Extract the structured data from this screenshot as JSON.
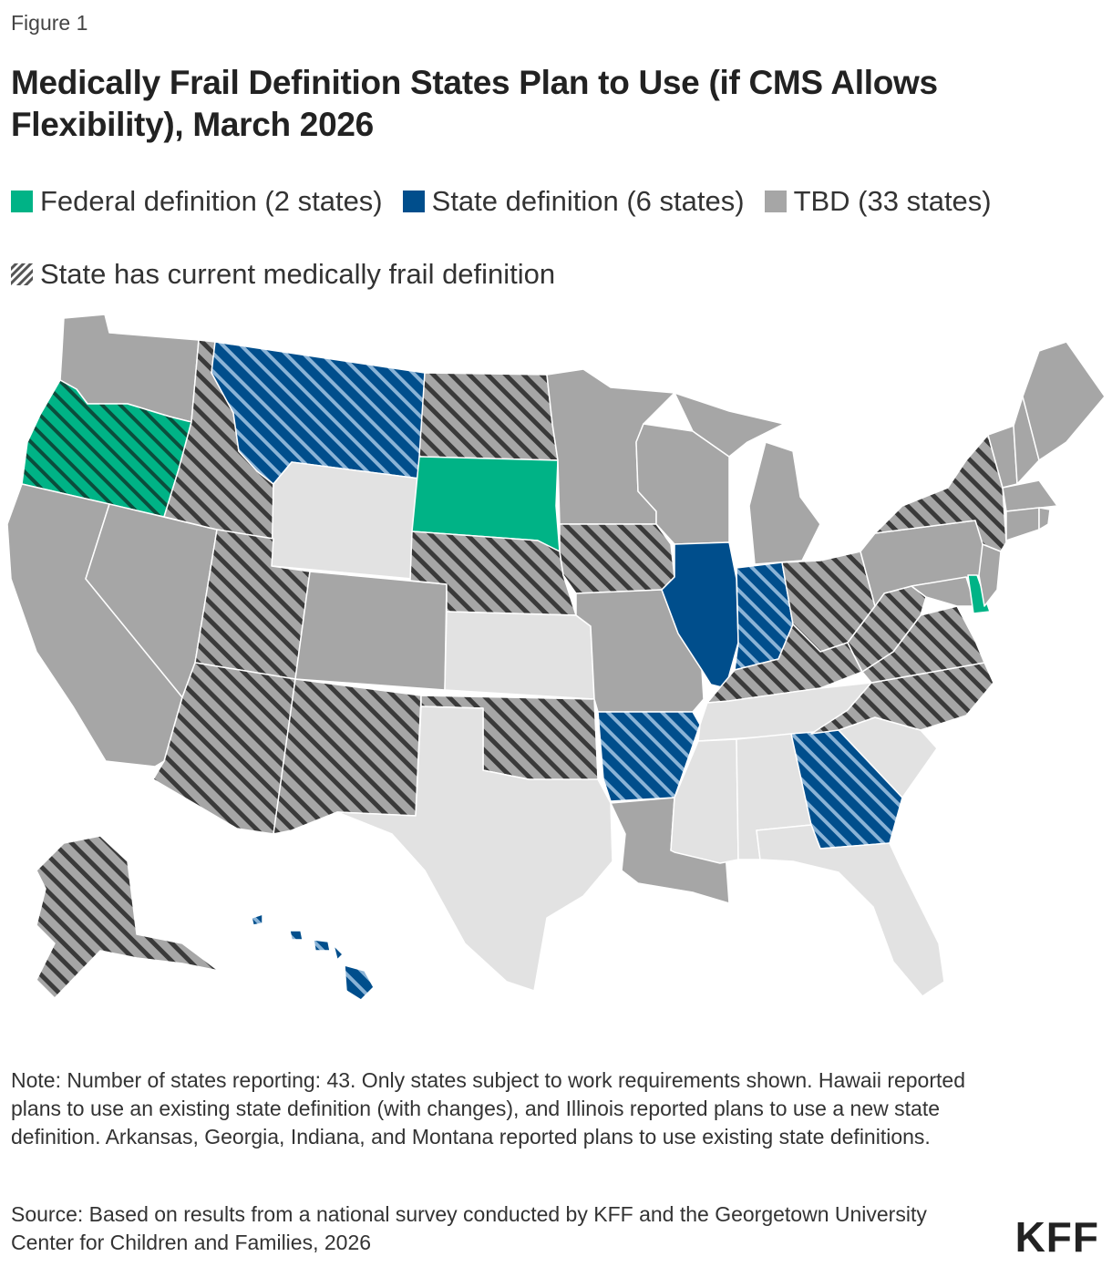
{
  "figure_label": "Figure 1",
  "title": "Medically Frail Definition States Plan to Use (if CMS Allows Flexibility), March 2026",
  "legend": {
    "federal": "Federal definition (2 states)",
    "state": "State definition (6 states)",
    "tbd": "TBD (33 states)",
    "current": "State has current medically frail definition"
  },
  "colors": {
    "federal": "#00b386",
    "state": "#004e8c",
    "tbd": "#a6a6a6",
    "not_shown": "#e2e2e2",
    "hatch": "#3a3a3a"
  },
  "note": "Note: Number of states reporting: 43. Only states subject to work requirements shown. Hawaii reported plans to use an existing state definition (with changes), and Illinois reported plans to use a new state definition. Arkansas, Georgia, Indiana, and Montana reported plans to use existing state definitions.",
  "source": "Source: Based on results from a national survey conducted by KFF and the Georgetown University Center for Children and Families, 2026",
  "logo": "KFF"
}
